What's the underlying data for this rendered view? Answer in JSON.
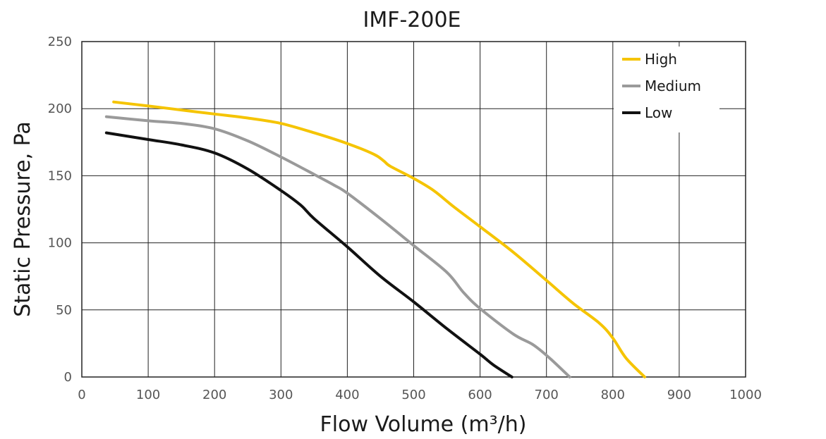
{
  "chart_data": {
    "type": "line",
    "title": "IMF-200E",
    "xlabel": "Flow Volume (m³/h)",
    "ylabel": "Static Pressure, Pa",
    "xlim": [
      0,
      1000
    ],
    "ylim": [
      0,
      250
    ],
    "xticks": [
      0,
      100,
      200,
      300,
      400,
      500,
      600,
      700,
      800,
      900,
      1000
    ],
    "yticks": [
      0,
      50,
      100,
      150,
      200,
      250
    ],
    "xtick_labels": [
      "0",
      "100",
      "200",
      "300",
      "400",
      "500",
      "600",
      "700",
      "800",
      "900",
      "1000"
    ],
    "ytick_labels": [
      "0",
      "50",
      "100",
      "150",
      "200",
      "250"
    ],
    "grid": true,
    "legend_position": "top-right",
    "series": [
      {
        "name": "High",
        "color": "#F5C400",
        "x": [
          48,
          100,
          150,
          200,
          250,
          300,
          350,
          400,
          440,
          455,
          465,
          500,
          530,
          560,
          600,
          650,
          700,
          740,
          780,
          800,
          820,
          848
        ],
        "y": [
          205,
          202,
          199,
          196,
          193,
          189,
          182,
          174,
          166,
          161,
          157,
          148,
          139,
          127,
          112,
          93,
          72,
          55,
          40,
          29,
          14,
          0
        ]
      },
      {
        "name": "Medium",
        "color": "#9A9A9A",
        "x": [
          37,
          100,
          150,
          200,
          250,
          300,
          350,
          380,
          400,
          450,
          500,
          550,
          575,
          600,
          650,
          680,
          705,
          735
        ],
        "y": [
          194,
          191,
          189,
          185,
          176,
          164,
          151,
          143,
          137,
          118,
          98,
          78,
          63,
          51,
          32,
          24,
          14,
          0
        ]
      },
      {
        "name": "Low",
        "color": "#111111",
        "x": [
          37,
          100,
          150,
          200,
          250,
          300,
          330,
          350,
          400,
          450,
          500,
          550,
          600,
          620,
          648
        ],
        "y": [
          182,
          177,
          173,
          167,
          155,
          139,
          128,
          118,
          97,
          75,
          56,
          36,
          17,
          9,
          0
        ]
      }
    ]
  }
}
